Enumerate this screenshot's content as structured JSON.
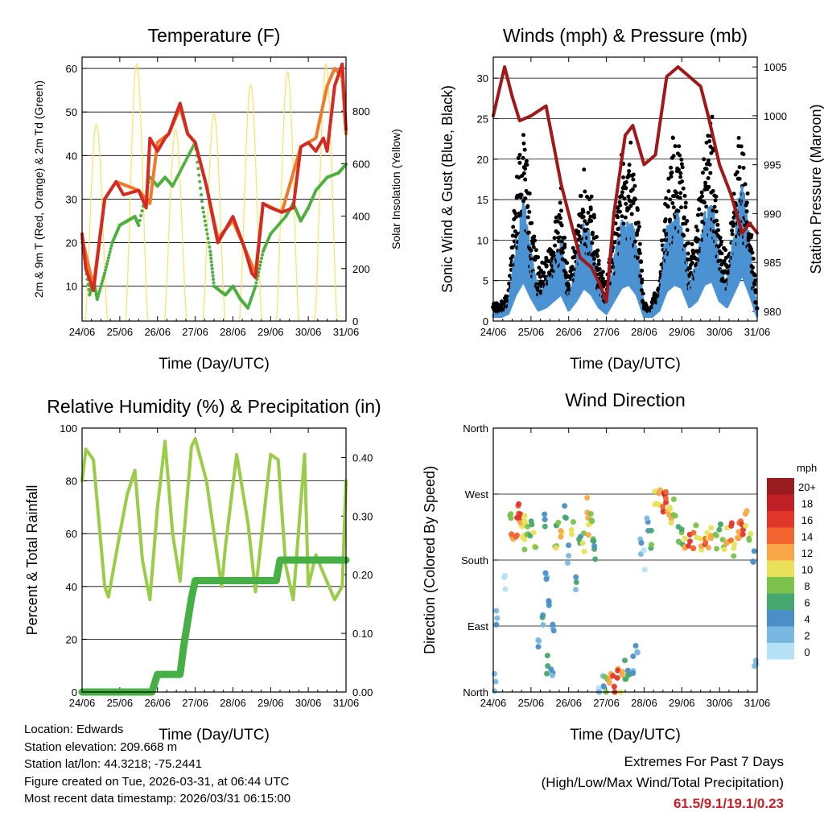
{
  "x_ticks": [
    "24/06",
    "25/06",
    "26/06",
    "27/06",
    "28/06",
    "29/06",
    "30/06",
    "31/06"
  ],
  "chart_data": [
    {
      "type": "line",
      "id": "temperature",
      "title": "Temperature (F)",
      "xlabel": "Time (Day/UTC)",
      "ylabel": "2m & 9m T (Red, Orange) & 2m Td (Green)",
      "ylabel_right": "Solar Insolation (Yellow)",
      "xlim": [
        24,
        31
      ],
      "ylim": [
        2,
        62.6
      ],
      "ylim_right": [
        0,
        1006
      ],
      "yticks": [
        10,
        20,
        30,
        40,
        50,
        60
      ],
      "yticks_right": [
        0,
        200,
        400,
        600,
        800
      ],
      "series": [
        {
          "name": "2m T",
          "color": "#d42a22",
          "x": [
            24.0,
            24.1,
            24.3,
            24.6,
            24.9,
            25.1,
            25.5,
            25.7,
            25.8,
            26.0,
            26.2,
            26.3,
            26.6,
            26.8,
            27.0,
            27.3,
            27.6,
            27.8,
            28.0,
            28.3,
            28.5,
            28.6,
            28.8,
            29.0,
            29.3,
            29.6,
            29.8,
            30.0,
            30.2,
            30.4,
            30.5,
            30.7,
            30.9,
            31.0
          ],
          "y": [
            22,
            14,
            9,
            30,
            34,
            31,
            32,
            28,
            44,
            41,
            44,
            45,
            52,
            45,
            43,
            33,
            20,
            23,
            26,
            19,
            13,
            12,
            29,
            28,
            27,
            28,
            42,
            43,
            41,
            44,
            41,
            56,
            61,
            46
          ]
        },
        {
          "name": "9m T",
          "color": "#f07a28",
          "x": [
            24.0,
            24.3,
            24.6,
            24.9,
            25.5,
            25.8,
            26.0,
            26.3,
            26.6,
            26.8,
            27.0,
            27.3,
            27.6,
            28.0,
            28.3,
            28.6,
            28.8,
            29.3,
            29.8,
            30.2,
            30.5,
            30.7,
            30.9,
            31.0
          ],
          "y": [
            21,
            10,
            30,
            34,
            32,
            29,
            43,
            45,
            51,
            45,
            43,
            33,
            21,
            25,
            19,
            13,
            29,
            27,
            42,
            44,
            56,
            60,
            58,
            45
          ]
        },
        {
          "name": "2m Td",
          "color": "#4caf3e",
          "x": [
            24.0,
            24.2,
            24.3,
            24.4,
            24.6,
            24.8,
            25.0,
            25.2,
            25.4,
            25.5,
            25.8,
            26.0,
            26.2,
            26.4,
            26.7,
            27.0,
            27.2,
            27.4,
            27.5,
            27.8,
            28.0,
            28.2,
            28.4,
            28.6,
            28.8,
            29.0,
            29.4,
            29.6,
            29.8,
            30.0,
            30.2,
            30.5,
            30.8,
            31.0
          ],
          "y": [
            20,
            8,
            12,
            7,
            13,
            20,
            24,
            25,
            26,
            24,
            35,
            33,
            35,
            33,
            38,
            43,
            28,
            18,
            10,
            8,
            10,
            7,
            5,
            10,
            18,
            22,
            26,
            29,
            25,
            28,
            32,
            35,
            36,
            38
          ]
        }
      ],
      "solar": {
        "name": "Solar Insolation",
        "color": "#ffe060",
        "peaks_day": [
          24.38,
          25.45,
          26.48,
          27.5,
          28.47,
          29.45,
          30.47
        ],
        "peaks_value": [
          750,
          980,
          730,
          790,
          900,
          950,
          980
        ]
      }
    },
    {
      "type": "scatter",
      "id": "winds",
      "title": "Winds (mph) & Pressure (mb)",
      "xlabel": "Time (Day/UTC)",
      "ylabel": "Sonic Wind & Gust (Blue, Black)",
      "ylabel_right": "Station Pressure (Maroon)",
      "xlim": [
        24,
        31
      ],
      "ylim": [
        0,
        32.6
      ],
      "ylim_right": [
        979,
        1006
      ],
      "yticks": [
        0,
        5,
        10,
        15,
        20,
        25,
        30
      ],
      "yticks_right": [
        980,
        985,
        990,
        995,
        1000,
        1005
      ],
      "wind": {
        "color": "#4a92d2",
        "x": [
          24.0,
          24.2,
          24.4,
          24.6,
          24.8,
          25.0,
          25.2,
          25.4,
          25.6,
          25.8,
          26.0,
          26.2,
          26.4,
          26.6,
          26.8,
          27.0,
          27.2,
          27.4,
          27.6,
          27.8,
          28.0,
          28.2,
          28.4,
          28.6,
          28.8,
          29.0,
          29.2,
          29.4,
          29.6,
          29.8,
          30.0,
          30.2,
          30.4,
          30.6,
          30.8,
          31.0
        ],
        "y": [
          1,
          1,
          2,
          8,
          12,
          7,
          3,
          4,
          6,
          8,
          3,
          6,
          10,
          8,
          4,
          2,
          6,
          10,
          11,
          8,
          1,
          1,
          3,
          9,
          11,
          10,
          4,
          6,
          11,
          12,
          6,
          4,
          9,
          14,
          8,
          1
        ]
      },
      "gust": {
        "color": "#000000",
        "x": [
          24.0,
          24.2,
          24.4,
          24.6,
          24.8,
          25.0,
          25.2,
          25.4,
          25.6,
          25.8,
          26.0,
          26.2,
          26.4,
          26.6,
          26.8,
          27.0,
          27.2,
          27.4,
          27.6,
          27.8,
          28.0,
          28.2,
          28.4,
          28.6,
          28.8,
          29.0,
          29.2,
          29.4,
          29.6,
          29.8,
          30.0,
          30.2,
          30.4,
          30.6,
          30.8,
          31.0
        ],
        "y": [
          2,
          2,
          3,
          15,
          22,
          12,
          6,
          7,
          10,
          14,
          5,
          10,
          16,
          14,
          7,
          4,
          10,
          17,
          21,
          15,
          2,
          2,
          5,
          15,
          20,
          18,
          7,
          10,
          19,
          22,
          10,
          7,
          15,
          22,
          13,
          2
        ]
      },
      "pressure": {
        "color": "#a0181a",
        "x": [
          24.0,
          24.3,
          24.5,
          24.7,
          25.0,
          25.4,
          25.6,
          25.8,
          26.0,
          26.3,
          26.6,
          26.8,
          27.0,
          27.2,
          27.5,
          27.7,
          28.0,
          28.3,
          28.6,
          28.9,
          29.2,
          29.5,
          29.7,
          30.0,
          30.3,
          30.6,
          30.8,
          31.0
        ],
        "y": [
          1000,
          1005,
          1002,
          999.5,
          1000,
          1001,
          997,
          993,
          990,
          985.5,
          984.5,
          983,
          981,
          990,
          998,
          999,
          995,
          996,
          1004,
          1005,
          1004,
          1003,
          1000,
          995,
          992,
          988,
          989,
          988
        ]
      }
    },
    {
      "type": "line",
      "id": "humidity",
      "title": "Relative Humidity (%) & Precipitation (in)",
      "xlabel": "Time (Day/UTC)",
      "ylabel": "Percent & Total Rainfall",
      "xlim": [
        24,
        31
      ],
      "ylim": [
        0,
        100
      ],
      "ylim_right": [
        0,
        0.45
      ],
      "yticks": [
        0,
        20,
        40,
        60,
        80,
        100
      ],
      "yticks_right": [
        "0.00",
        "0.10",
        "0.20",
        "0.30",
        "0.40"
      ],
      "series": [
        {
          "name": "Relative Humidity",
          "axis": "left",
          "color": "#99cc47",
          "x": [
            24.0,
            24.1,
            24.3,
            24.6,
            24.7,
            25.0,
            25.2,
            25.4,
            25.6,
            25.8,
            26.0,
            26.2,
            26.4,
            26.6,
            26.9,
            27.0,
            27.3,
            27.5,
            27.7,
            27.8,
            28.1,
            28.4,
            28.6,
            29.0,
            29.2,
            29.4,
            29.6,
            29.9,
            30.0,
            30.2,
            30.4,
            30.7,
            30.9,
            31.0
          ],
          "y": [
            80,
            92,
            88,
            40,
            36,
            60,
            75,
            84,
            50,
            35,
            70,
            95,
            60,
            42,
            93,
            96,
            80,
            60,
            40,
            55,
            90,
            64,
            38,
            90,
            88,
            48,
            35,
            90,
            40,
            52,
            45,
            35,
            40,
            80
          ]
        },
        {
          "name": "Total Precipitation",
          "axis": "right",
          "color": "#46b046",
          "x": [
            24.0,
            25.85,
            26.0,
            26.6,
            26.7,
            26.9,
            27.0,
            29.15,
            29.25,
            31.0
          ],
          "y": [
            0,
            0,
            0.03,
            0.03,
            0.08,
            0.16,
            0.19,
            0.19,
            0.225,
            0.225
          ]
        }
      ]
    },
    {
      "type": "scatter",
      "id": "wind_direction",
      "title": "Wind Direction",
      "xlabel": "Time (Day/UTC)",
      "ylabel": "Direction (Colored By Speed)",
      "xlim": [
        24,
        31
      ],
      "ylim": [
        0,
        360
      ],
      "yticks": [
        0,
        90,
        180,
        270,
        360
      ],
      "ytick_labels": [
        "North",
        "East",
        "South",
        "West",
        "North"
      ],
      "legend": {
        "title": "mph",
        "labels": [
          "20+",
          "18",
          "16",
          "14",
          "12",
          "10",
          "8",
          "6",
          "4",
          "2",
          "0"
        ],
        "colors": [
          "#9b1c1f",
          "#c02026",
          "#e0372a",
          "#f26430",
          "#f9a646",
          "#e9e15a",
          "#7cc24c",
          "#46a86e",
          "#4a8fc8",
          "#7ab8e4",
          "#b6e2f8"
        ]
      },
      "points_day": [
        24.05,
        24.1,
        24.3,
        24.45,
        24.5,
        24.6,
        24.65,
        24.7,
        24.75,
        24.8,
        24.85,
        24.9,
        25.0,
        25.1,
        25.2,
        25.3,
        25.35,
        25.4,
        25.45,
        25.5,
        25.55,
        25.6,
        25.65,
        25.7,
        25.8,
        25.9,
        26.0,
        26.1,
        26.2,
        26.3,
        26.4,
        26.5,
        26.55,
        26.6,
        26.65,
        26.7,
        26.8,
        26.9,
        27.0,
        27.1,
        27.2,
        27.3,
        27.4,
        27.5,
        27.6,
        27.7,
        27.8,
        27.9,
        28.0,
        28.1,
        28.2,
        28.3,
        28.4,
        28.5,
        28.55,
        28.6,
        28.65,
        28.7,
        28.8,
        28.9,
        29.0,
        29.1,
        29.2,
        29.3,
        29.4,
        29.5,
        29.6,
        29.7,
        29.8,
        29.9,
        30.0,
        30.1,
        30.2,
        30.3,
        30.4,
        30.5,
        30.55,
        30.6,
        30.7,
        30.8,
        30.9,
        30.95
      ],
      "points_dir": [
        10,
        100,
        150,
        230,
        210,
        225,
        245,
        240,
        220,
        200,
        235,
        215,
        225,
        205,
        60,
        90,
        240,
        160,
        40,
        120,
        30,
        80,
        200,
        230,
        215,
        240,
        190,
        225,
        150,
        215,
        205,
        250,
        225,
        230,
        200,
        190,
        5,
        12,
        8,
        15,
        10,
        20,
        14,
        30,
        25,
        40,
        60,
        200,
        180,
        230,
        210,
        260,
        270,
        250,
        270,
        265,
        240,
        245,
        255,
        215,
        210,
        205,
        200,
        210,
        225,
        195,
        215,
        210,
        220,
        205,
        215,
        200,
        210,
        220,
        200,
        215,
        225,
        230,
        235,
        210,
        190,
        30
      ],
      "points_speed": [
        1,
        2,
        1,
        8,
        12,
        15,
        14,
        16,
        10,
        9,
        11,
        7,
        6,
        8,
        3,
        4,
        5,
        2,
        6,
        5,
        3,
        4,
        9,
        7,
        11,
        6,
        3,
        10,
        4,
        6,
        9,
        12,
        11,
        8,
        7,
        5,
        1,
        3,
        8,
        12,
        16,
        14,
        11,
        7,
        5,
        4,
        3,
        2,
        1,
        3,
        6,
        10,
        12,
        15,
        16,
        14,
        12,
        10,
        9,
        8,
        7,
        12,
        16,
        14,
        9,
        10,
        15,
        12,
        11,
        8,
        7,
        9,
        12,
        15,
        10,
        13,
        14,
        16,
        11,
        8,
        5,
        2
      ]
    }
  ],
  "info": {
    "location": "Location: Edwards",
    "elevation": "Station elevation: 209.668 m",
    "latlon": "Station lat/lon: 44.3218; -75.2441",
    "created": "Figure created on Tue, 2026-03-31, at 06:44 UTC",
    "recent": "Most recent data timestamp: 2026/03/31 06:15:00"
  },
  "extremes": {
    "title": "Extremes For Past 7 Days",
    "subtitle": "(High/Low/Max Wind/Total Precipitation)",
    "values": "61.5/9.1/19.1/0.23"
  }
}
